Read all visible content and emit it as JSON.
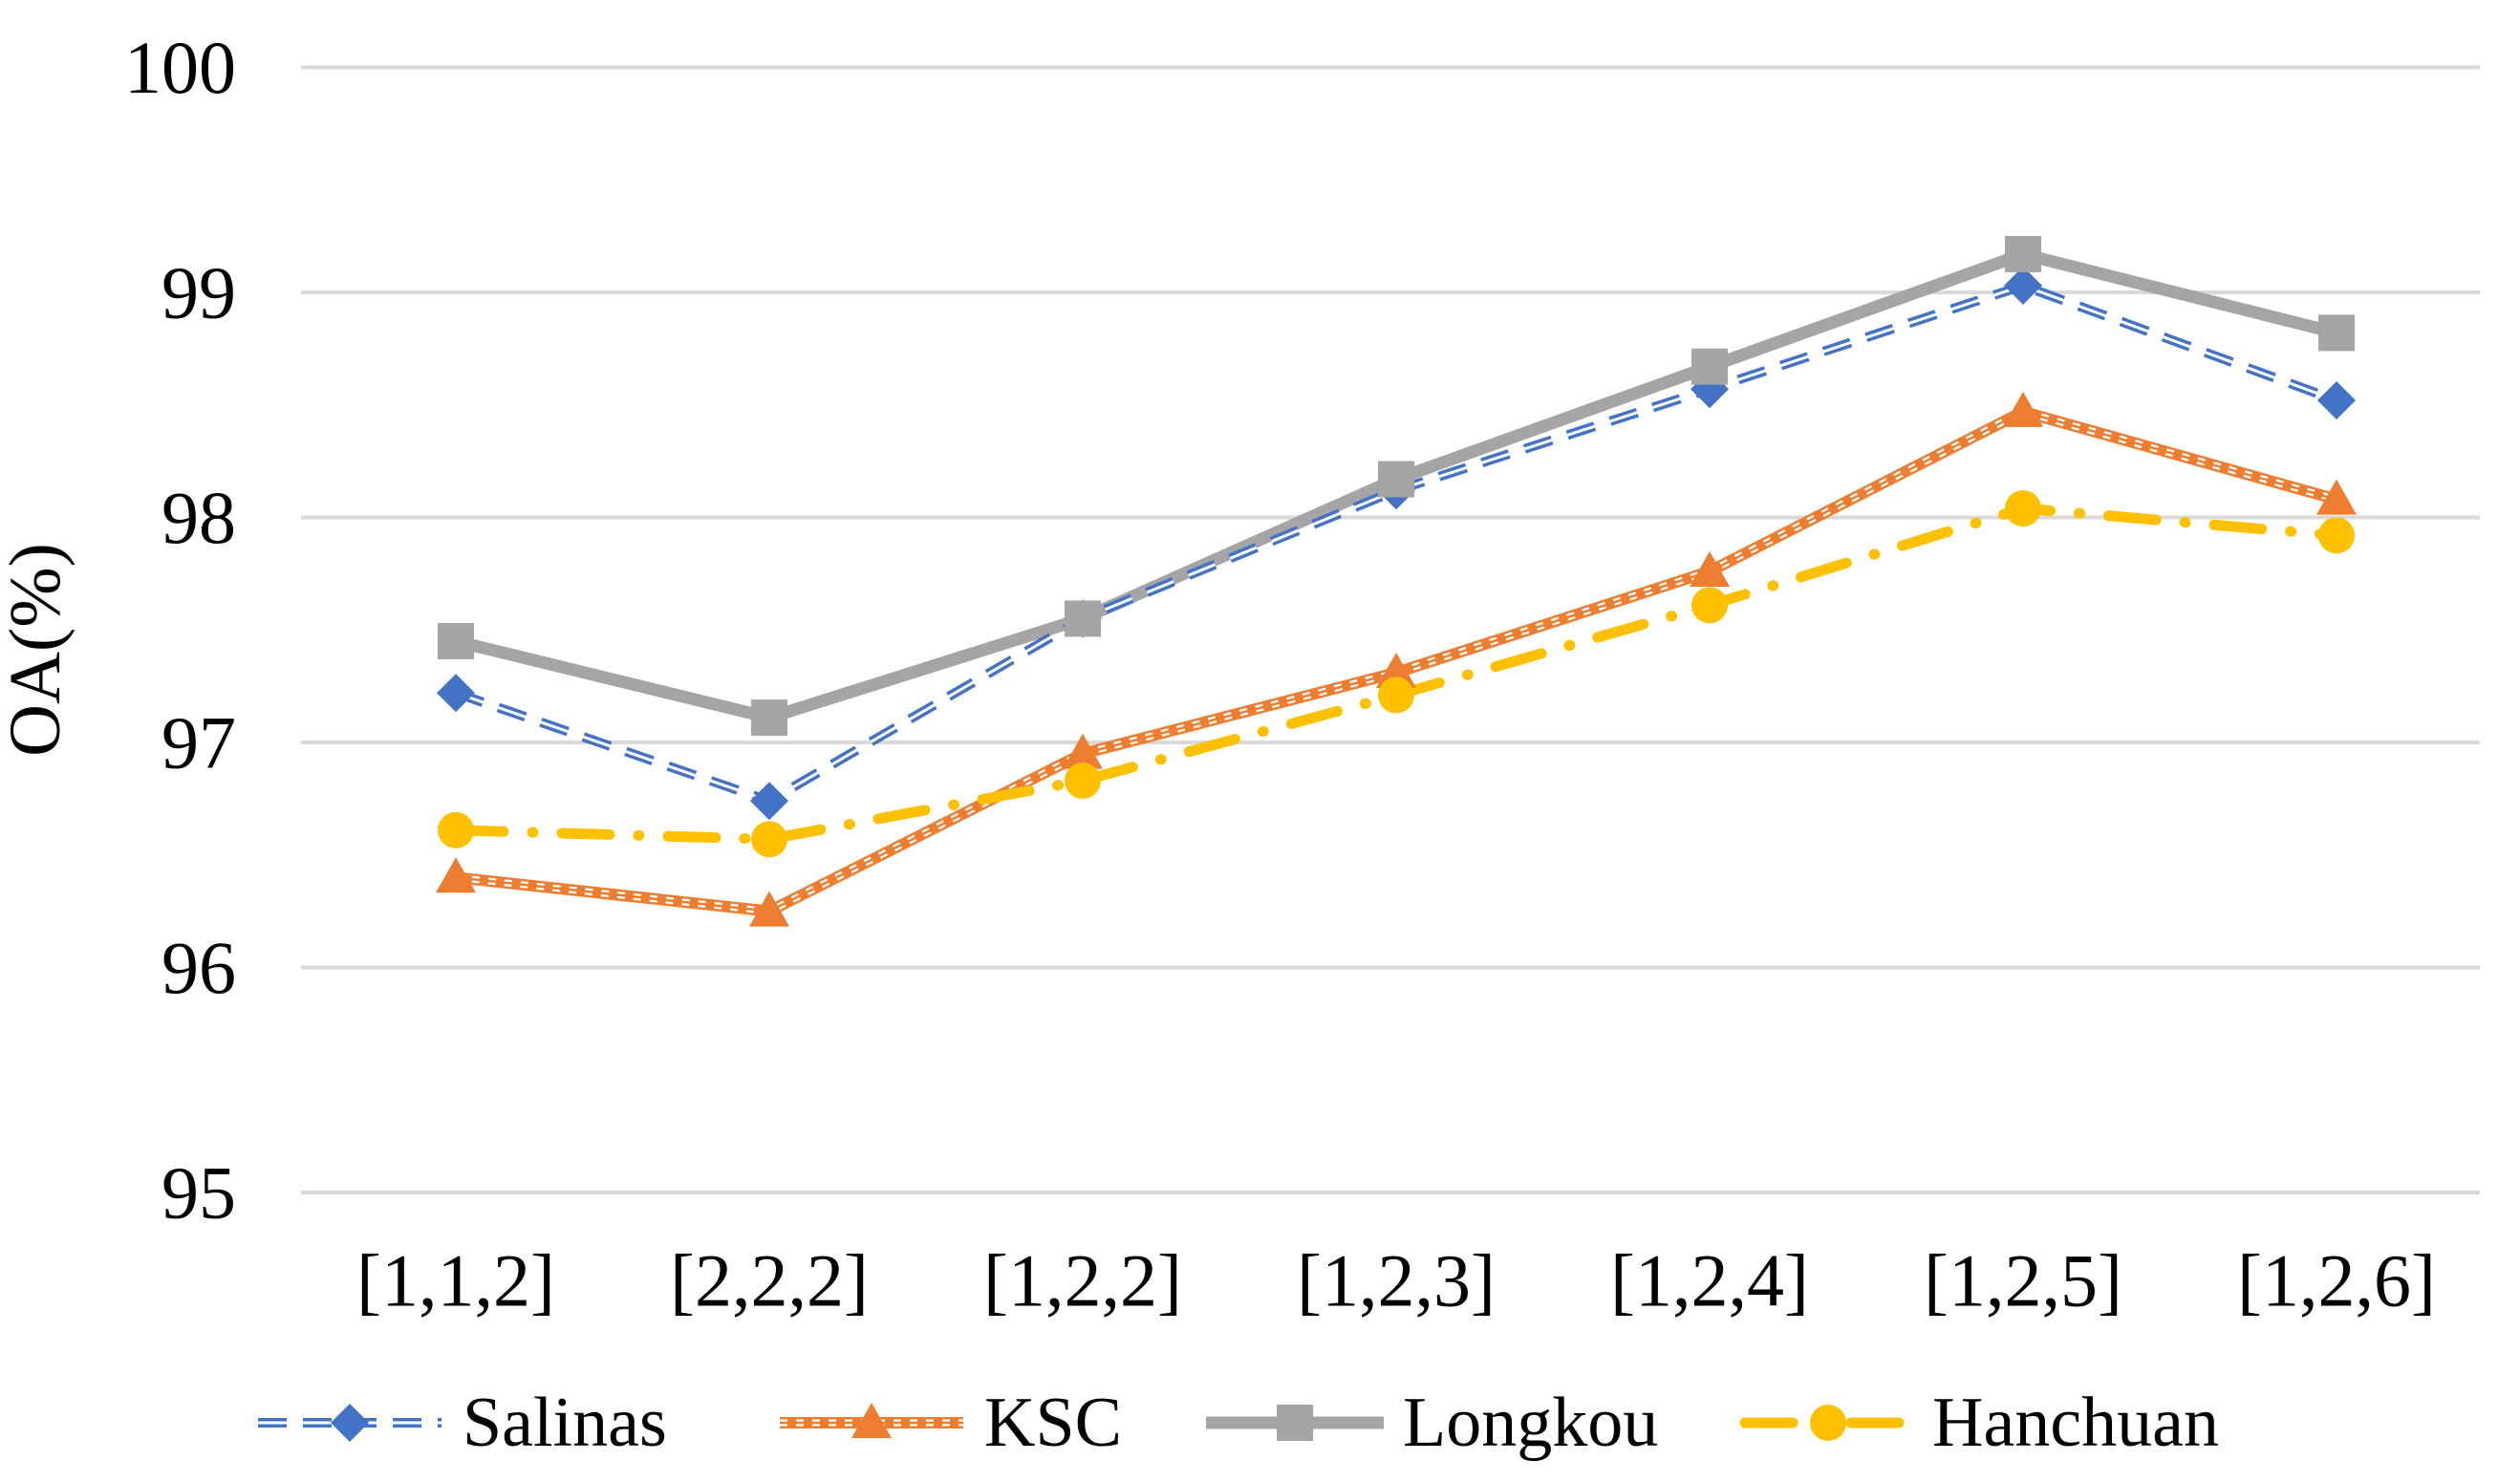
{
  "chart_data": {
    "type": "line",
    "title": "",
    "xlabel": "",
    "ylabel": "OA(%)",
    "ylim": [
      95,
      100
    ],
    "yticks": [
      95,
      96,
      97,
      98,
      99,
      100
    ],
    "grid": "horizontal",
    "gridline_color": "#D9D9D9",
    "text_color": "#000000",
    "legend_position": "bottom",
    "categories": [
      "[1,1,2]",
      "[2,2,2]",
      "[1,2,2]",
      "[1,2,3]",
      "[1,2,4]",
      "[1,2,5]",
      "[1,2,6]"
    ],
    "series": [
      {
        "name": "Salinas",
        "color": "#4472C4",
        "line_style": "dashed",
        "marker": "diamond",
        "values": [
          97.22,
          96.74,
          97.55,
          98.12,
          98.57,
          99.03,
          98.52
        ]
      },
      {
        "name": "KSC",
        "color": "#ED7D31",
        "line_style": "hatched",
        "marker": "triangle",
        "values": [
          96.4,
          96.25,
          96.95,
          97.31,
          97.76,
          98.47,
          98.08
        ]
      },
      {
        "name": "Longkou",
        "color": "#A5A5A5",
        "line_style": "solid",
        "marker": "square",
        "values": [
          97.45,
          97.11,
          97.55,
          98.17,
          98.67,
          99.17,
          98.82
        ]
      },
      {
        "name": "Hanchuan",
        "color": "#FFC000",
        "line_style": "dashdot",
        "marker": "circle",
        "values": [
          96.61,
          96.57,
          96.83,
          97.21,
          97.61,
          98.04,
          97.92
        ]
      }
    ]
  }
}
